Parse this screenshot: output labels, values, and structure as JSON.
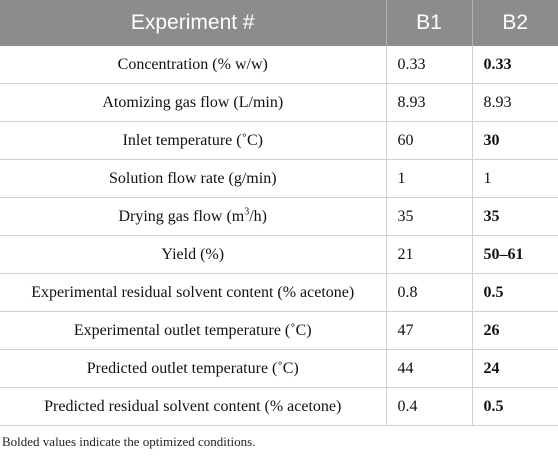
{
  "table": {
    "headers": [
      "Experiment #",
      "B1",
      "B2"
    ],
    "rows": [
      {
        "label": "Concentration (% w/w)",
        "b1": "0.33",
        "b2": "0.33",
        "b2_bold": true
      },
      {
        "label": "Atomizing gas flow (L/min)",
        "b1": "8.93",
        "b2": "8.93",
        "b2_bold": false
      },
      {
        "label": "Inlet temperature (˚C)",
        "b1": "60",
        "b2": "30",
        "b2_bold": true
      },
      {
        "label": "Solution flow rate (g/min)",
        "b1": "1",
        "b2": "1",
        "b2_bold": false
      },
      {
        "label_pre": "Drying gas flow (m",
        "label_sup": "3",
        "label_post": "/h)",
        "b1": "35",
        "b2": "35",
        "b2_bold": true
      },
      {
        "label": "Yield (%)",
        "b1": "21",
        "b2": "50–61",
        "b2_bold": true
      },
      {
        "label": "Experimental residual solvent content (% acetone)",
        "b1": "0.8",
        "b2": "0.5",
        "b2_bold": true
      },
      {
        "label": "Experimental outlet temperature (˚C)",
        "b1": "47",
        "b2": "26",
        "b2_bold": true
      },
      {
        "label": "Predicted outlet temperature (˚C)",
        "b1": "44",
        "b2": "24",
        "b2_bold": true
      },
      {
        "label": "Predicted residual solvent content (% acetone)",
        "b1": "0.4",
        "b2": "0.5",
        "b2_bold": true
      }
    ]
  },
  "footnote": "Bolded values indicate the optimized conditions."
}
